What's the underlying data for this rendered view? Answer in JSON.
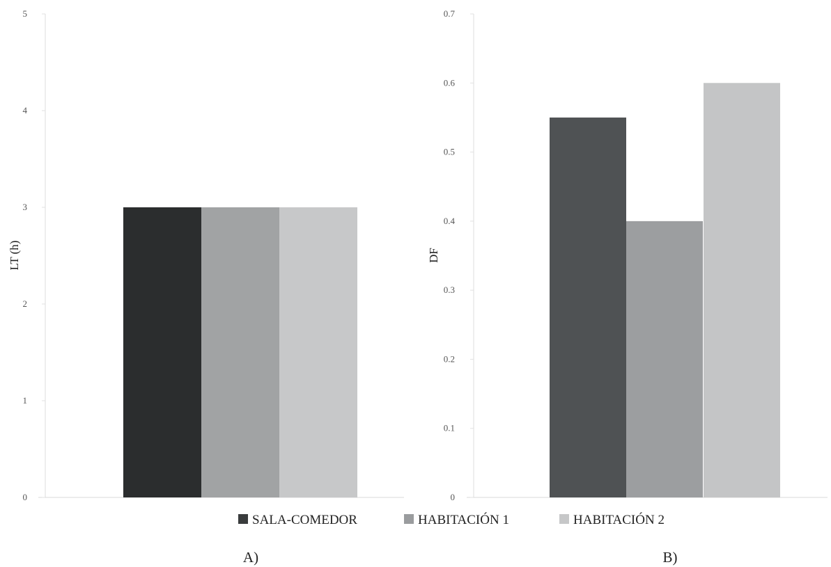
{
  "chart_data": [
    {
      "type": "bar",
      "panel_label": "A)",
      "ylabel": "LT (h)",
      "ylim": [
        0,
        5
      ],
      "yticks": [
        "0",
        "1",
        "2",
        "3",
        "4",
        "5"
      ],
      "grid": false,
      "series": [
        {
          "name": "SALA-COMEDOR",
          "values": [
            3
          ],
          "color": "#2b2d2e"
        },
        {
          "name": "HABITACIÓN 1",
          "values": [
            3
          ],
          "color": "#a1a3a4"
        },
        {
          "name": "HABITACIÓN 2",
          "values": [
            3
          ],
          "color": "#c7c8c9"
        }
      ]
    },
    {
      "type": "bar",
      "panel_label": "B)",
      "ylabel": "DF",
      "ylim": [
        0,
        0.7
      ],
      "yticks": [
        "0",
        "0.1",
        "0.2",
        "0.3",
        "0.4",
        "0.5",
        "0.6",
        "0.7"
      ],
      "grid": false,
      "series": [
        {
          "name": "SALA-COMEDOR",
          "values": [
            0.55
          ],
          "color": "#4f5254"
        },
        {
          "name": "HABITACIÓN 1",
          "values": [
            0.4
          ],
          "color": "#9c9ea0"
        },
        {
          "name": "HABITACIÓN 2",
          "values": [
            0.6
          ],
          "color": "#c4c5c6"
        }
      ]
    }
  ],
  "legend": {
    "placement": "bottom-center",
    "items": [
      {
        "label": "SALA-COMEDOR",
        "color": "#3a3c3d"
      },
      {
        "label": "HABITACIÓN 1",
        "color": "#9a9c9e"
      },
      {
        "label": "HABITACIÓN 2",
        "color": "#c6c7c8"
      }
    ]
  }
}
